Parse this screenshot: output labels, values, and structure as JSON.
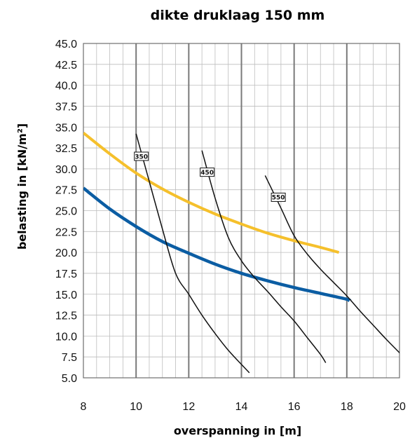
{
  "chart_data": {
    "type": "line",
    "title": "dikte druklaag 150 mm",
    "xlabel": "overspanning in [m]",
    "ylabel": "belasting in [kN/m²]",
    "xlim": [
      8,
      20
    ],
    "ylim": [
      5,
      45
    ],
    "x_ticks": [
      "8",
      "10",
      "12",
      "14",
      "16",
      "18",
      "20"
    ],
    "y_ticks": [
      "5.0",
      "7.5",
      "10.0",
      "12.5",
      "15.0",
      "17.5",
      "20.0",
      "22.5",
      "25.0",
      "27.5",
      "30.0",
      "32.5",
      "35.0",
      "37.5",
      "40.0",
      "42.5",
      "45.0"
    ],
    "grid": true,
    "series": [
      {
        "color": "#F5C02C",
        "points": [
          [
            8,
            34.3
          ],
          [
            9,
            31.8
          ],
          [
            10,
            29.5
          ],
          [
            11,
            27.6
          ],
          [
            12,
            26.0
          ],
          [
            13,
            24.6
          ],
          [
            14,
            23.4
          ],
          [
            15,
            22.3
          ],
          [
            16,
            21.4
          ],
          [
            17,
            20.6
          ],
          [
            17.7,
            20.0
          ]
        ]
      },
      {
        "color": "#0B5DA3",
        "points": [
          [
            8,
            27.7
          ],
          [
            9,
            25.2
          ],
          [
            10,
            23.1
          ],
          [
            11,
            21.3
          ],
          [
            12,
            19.9
          ],
          [
            13,
            18.6
          ],
          [
            14,
            17.5
          ],
          [
            15,
            16.6
          ],
          [
            16,
            15.8
          ],
          [
            17,
            15.1
          ],
          [
            18,
            14.4
          ],
          [
            18.1,
            14.2
          ]
        ]
      },
      {
        "name": "350",
        "color": "#111111",
        "points": [
          [
            10.0,
            34.2
          ],
          [
            10.5,
            28.5
          ],
          [
            11.0,
            22.8
          ],
          [
            11.5,
            17.5
          ],
          [
            12.0,
            15.0
          ],
          [
            12.5,
            12.5
          ],
          [
            13.0,
            10.3
          ],
          [
            13.5,
            8.3
          ],
          [
            14.0,
            6.6
          ],
          [
            14.3,
            5.6
          ]
        ]
      },
      {
        "name": "450",
        "color": "#111111",
        "points": [
          [
            12.5,
            32.2
          ],
          [
            13.0,
            26.5
          ],
          [
            13.5,
            21.8
          ],
          [
            14.0,
            19.0
          ],
          [
            14.5,
            17.0
          ],
          [
            15.0,
            15.3
          ],
          [
            15.5,
            13.5
          ],
          [
            16.0,
            11.8
          ],
          [
            16.5,
            9.8
          ],
          [
            17.0,
            7.8
          ],
          [
            17.2,
            6.8
          ]
        ]
      },
      {
        "name": "550",
        "color": "#111111",
        "points": [
          [
            14.9,
            29.2
          ],
          [
            15.5,
            25.3
          ],
          [
            16.0,
            22.0
          ],
          [
            16.5,
            19.8
          ],
          [
            17.0,
            18.0
          ],
          [
            17.5,
            16.4
          ],
          [
            18.0,
            14.8
          ],
          [
            18.5,
            13.0
          ],
          [
            19.0,
            11.3
          ],
          [
            19.5,
            9.6
          ],
          [
            20.0,
            8.0
          ],
          [
            20.3,
            7.0
          ]
        ]
      }
    ],
    "curve_labels": [
      {
        "text": "350",
        "x": 10.2,
        "y": 31.5
      },
      {
        "text": "450",
        "x": 12.7,
        "y": 29.6
      },
      {
        "text": "550",
        "x": 15.4,
        "y": 26.6
      }
    ]
  }
}
